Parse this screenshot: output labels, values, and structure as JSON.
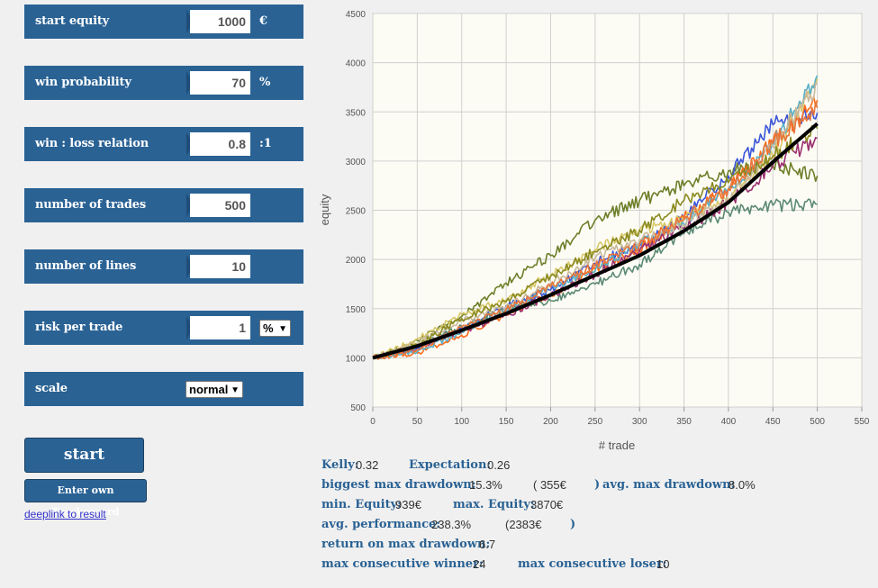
{
  "params": {
    "start_equity": {
      "label": "start equity",
      "value": "1000",
      "unit": "€"
    },
    "win_probability": {
      "label": "win probability",
      "value": "70",
      "unit": "%"
    },
    "win_loss_relation": {
      "label": "win : loss relation",
      "value": "0.8",
      "unit": ":1"
    },
    "number_of_trades": {
      "label": "number of trades",
      "value": "500"
    },
    "number_of_lines": {
      "label": "number of lines",
      "value": "10"
    },
    "risk_per_trade": {
      "label": "risk per trade",
      "value": "1",
      "unit_select": "%"
    },
    "scale": {
      "label": "scale",
      "select": "normal"
    }
  },
  "buttons": {
    "start_simulation": "start simulation",
    "own_trackrecord": "Enter own Trackrecord",
    "deeplink": "deeplink to result"
  },
  "stats": {
    "kelly_label": "Kelly:",
    "kelly_value": "0.32",
    "expectation_label": "Expectation:",
    "expectation_value": "0.26",
    "biggest_dd_label": "biggest max drawdown:",
    "biggest_dd_value": "15.3%",
    "biggest_dd_abs": "( 355€",
    "biggest_dd_close": ")",
    "avg_dd_label": "avg. max drawdown:",
    "avg_dd_value": "8.0%",
    "min_equity_label": "min. Equity:",
    "min_equity_value": "939€",
    "max_equity_label": "max. Equity:",
    "max_equity_value": "3870€",
    "avg_perf_label": "avg. performance:",
    "avg_perf_value": "238.3%",
    "avg_perf_abs": "(2383€",
    "avg_perf_close": ")",
    "romd_label": "return on max drawdown:",
    "romd_value": "6.7",
    "max_win_label": "max consecutive winner:",
    "max_win_value": "24",
    "max_lose_label": "max consecutive loser:",
    "max_lose_value": "10"
  },
  "chart_data": {
    "type": "line",
    "xlabel": "# trade",
    "ylabel": "equity",
    "xlim": [
      0,
      550
    ],
    "ylim": [
      500,
      4500
    ],
    "xticks": [
      0,
      50,
      100,
      150,
      200,
      250,
      300,
      350,
      400,
      450,
      500,
      550
    ],
    "yticks": [
      500,
      1000,
      1500,
      2000,
      2500,
      3000,
      3500,
      4000,
      4500
    ],
    "grid": true,
    "x": [
      0,
      50,
      100,
      150,
      200,
      250,
      300,
      350,
      400,
      450,
      500
    ],
    "series": [
      {
        "color": "#6d7f2a",
        "values": [
          1000,
          1180,
          1420,
          1760,
          2040,
          2400,
          2600,
          2750,
          2900,
          2950,
          2850
        ]
      },
      {
        "color": "#3a55d8",
        "values": [
          1000,
          1100,
          1290,
          1530,
          1690,
          1960,
          2150,
          2420,
          2850,
          3370,
          3490
        ]
      },
      {
        "color": "#ff6a1a",
        "values": [
          1000,
          1050,
          1230,
          1440,
          1640,
          1900,
          2100,
          2420,
          2720,
          3200,
          3620
        ]
      },
      {
        "color": "#d9c86a",
        "values": [
          1000,
          1190,
          1440,
          1590,
          1840,
          2100,
          2300,
          2400,
          2620,
          3050,
          3840
        ]
      },
      {
        "color": "#5ab0c8",
        "values": [
          1000,
          1060,
          1260,
          1480,
          1720,
          1880,
          2160,
          2360,
          2710,
          3170,
          3870
        ]
      },
      {
        "color": "#5c8a74",
        "values": [
          1000,
          1120,
          1320,
          1500,
          1580,
          1750,
          1950,
          2260,
          2480,
          2550,
          2560
        ]
      },
      {
        "color": "#9a3070",
        "values": [
          1000,
          1110,
          1270,
          1430,
          1640,
          1850,
          2090,
          2320,
          2580,
          2950,
          3230
        ]
      },
      {
        "color": "#c8b89a",
        "values": [
          1000,
          1150,
          1380,
          1520,
          1760,
          2010,
          2200,
          2350,
          2600,
          3150,
          3780
        ]
      },
      {
        "color": "#8a8a20",
        "values": [
          1000,
          1130,
          1400,
          1570,
          1830,
          2080,
          2300,
          2600,
          2780,
          3050,
          3330
        ]
      },
      {
        "color": "#e8743a",
        "values": [
          1000,
          1080,
          1310,
          1490,
          1720,
          1930,
          2150,
          2410,
          2720,
          3180,
          3540
        ]
      },
      {
        "name": "",
        "color": "#000000",
        "values": [
          1000,
          1120,
          1280,
          1450,
          1640,
          1840,
          2040,
          2290,
          2580,
          2990,
          3380
        ]
      }
    ]
  }
}
